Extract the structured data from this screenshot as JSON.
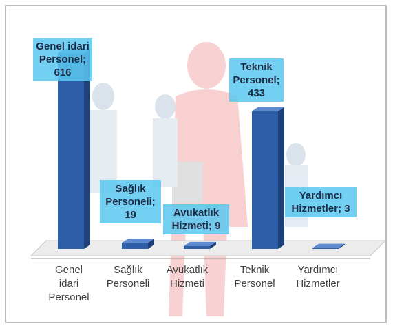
{
  "chart_data": {
    "type": "bar3d",
    "categories": [
      "Genel idari Personel",
      "Sağlık Personeli",
      "Avukatlık Hizmeti",
      "Teknik Personel",
      "Yardımcı Hizmetler"
    ],
    "values": [
      616,
      19,
      9,
      433,
      3
    ],
    "value_labels": [
      "Genel idari Personel; 616",
      "Sağlık Personeli; 19",
      "Avukatlık Hizmeti; 9",
      "Teknik Personel; 433",
      "Yardımcı Hizmetler; 3"
    ],
    "color": "#2f5ea8"
  }
}
